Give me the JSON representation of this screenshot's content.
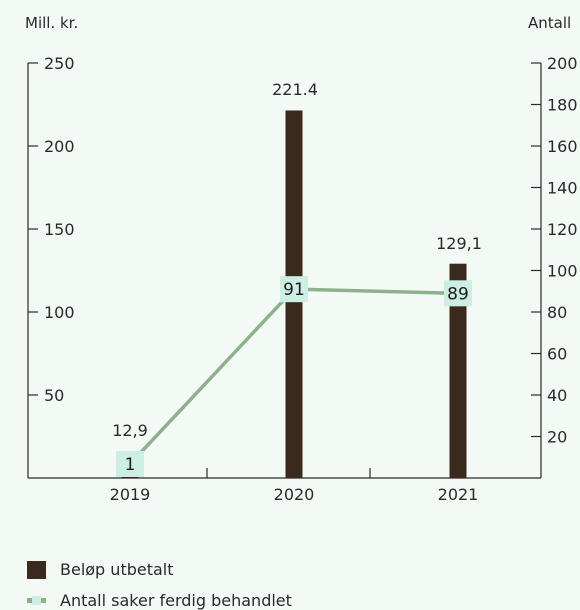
{
  "chart_data": {
    "type": "bar",
    "categories": [
      "2019",
      "2020",
      "2021"
    ],
    "left_axis": {
      "unit_label": "Mill. kr.",
      "range": [
        0,
        250
      ],
      "ticks": [
        50,
        100,
        150,
        200,
        250
      ],
      "tick_labels": [
        "50",
        "100",
        "150",
        "200",
        "250"
      ]
    },
    "right_axis": {
      "unit_label": "Antall",
      "range": [
        0,
        200
      ],
      "ticks": [
        20,
        40,
        60,
        80,
        100,
        120,
        140,
        160,
        180,
        200
      ],
      "tick_labels": [
        "20",
        "40",
        "60",
        "80",
        "100",
        "120",
        "140",
        "160",
        "180",
        "200"
      ]
    },
    "series": [
      {
        "name": "Beløp utbetalt",
        "type": "bar",
        "axis": "left",
        "values": [
          12.9,
          221.4,
          129.1
        ],
        "labels": [
          "12,9",
          "221.4",
          "129,1"
        ]
      },
      {
        "name": "Antall saker ferdig behandlet",
        "type": "line",
        "axis": "right",
        "values": [
          1,
          91,
          89
        ],
        "labels": [
          "1",
          "91",
          "89"
        ]
      }
    ],
    "legend_position": "bottom-left",
    "grid": false,
    "colors": {
      "bar": "#3a2a1e",
      "line": "#8fb08c",
      "marker_fill": "#cdeee2",
      "axis": "#2a2a2a",
      "background": "#f3faf6"
    }
  }
}
